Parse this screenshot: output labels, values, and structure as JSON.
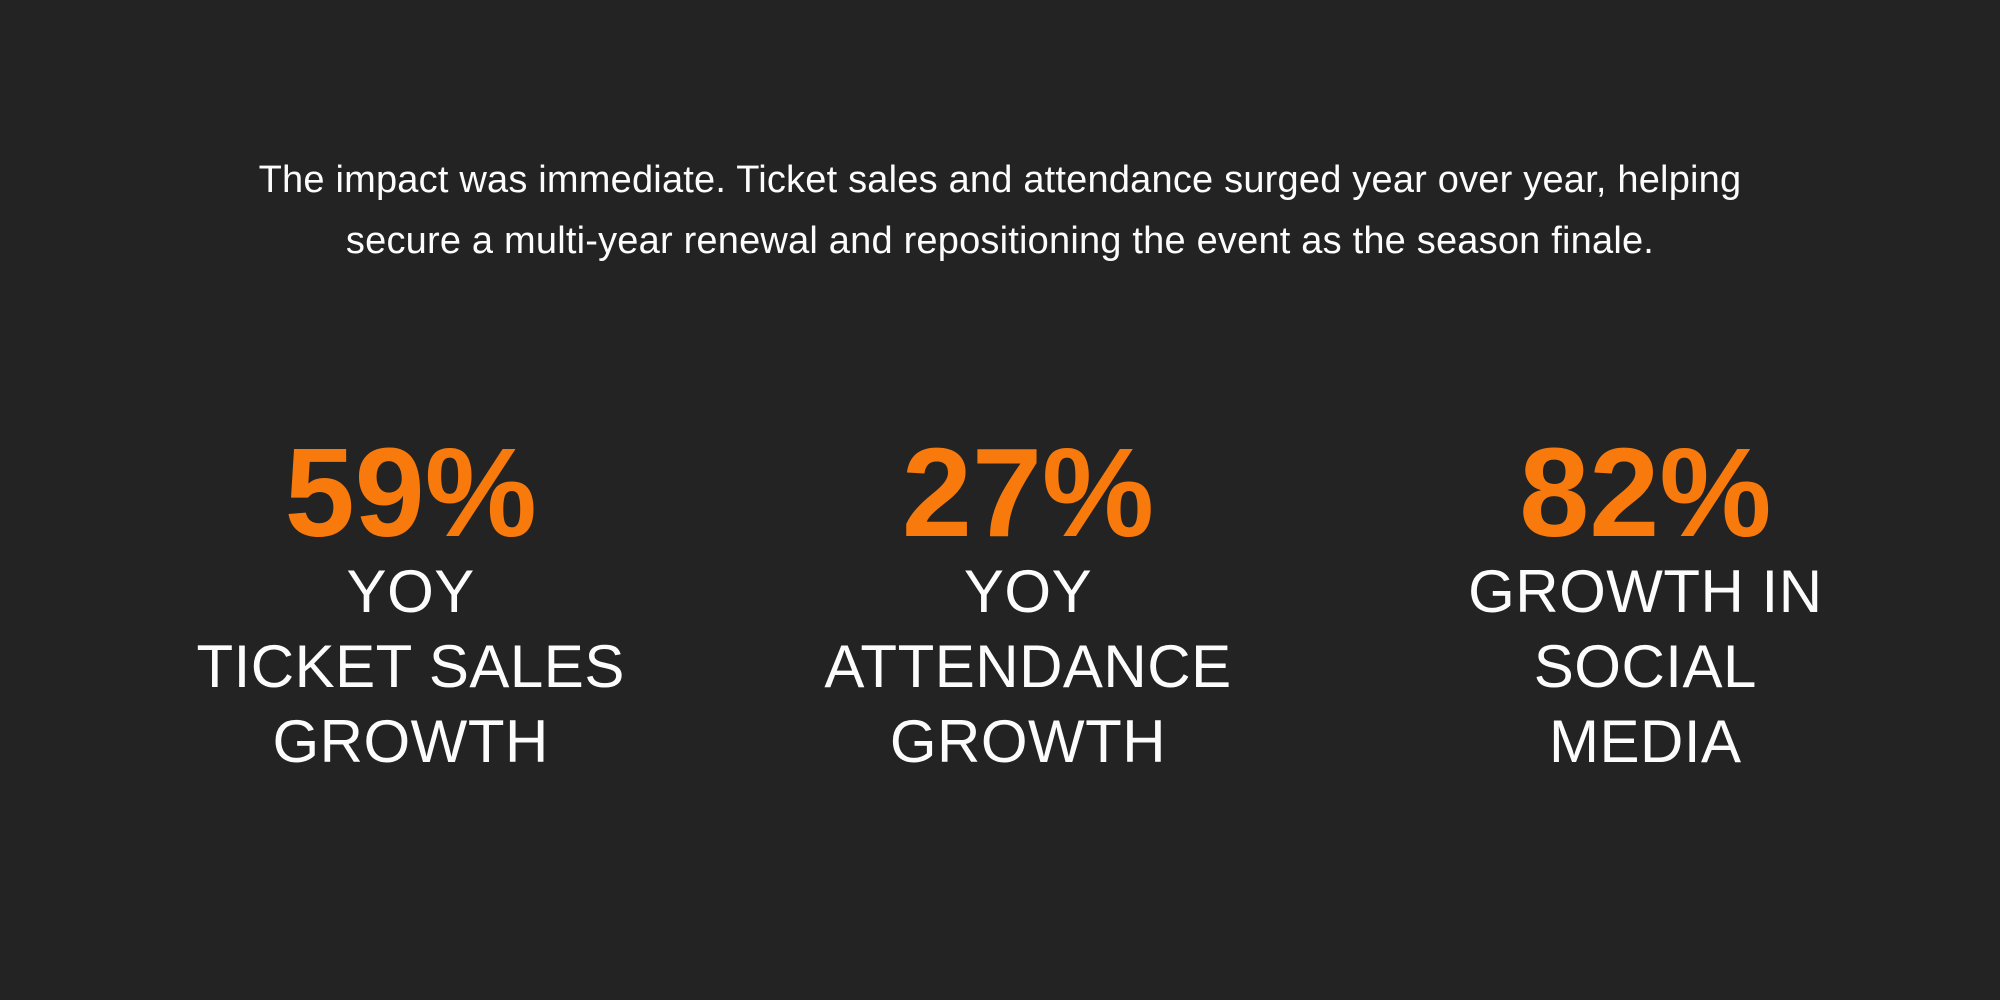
{
  "theme": {
    "background_color": "#232323",
    "accent_color": "#F87A0C",
    "text_color": "#FCFCFC"
  },
  "intro": {
    "text": "The impact was immediate. Ticket sales and attendance surged year over year, helping\nsecure a multi-year renewal and repositioning the event as the season finale."
  },
  "stats": [
    {
      "value": "59%",
      "label": "YOY\nTICKET SALES\nGROWTH"
    },
    {
      "value": "27%",
      "label": "YOY\nATTENDANCE\nGROWTH"
    },
    {
      "value": "82%",
      "label": "GROWTH IN\nSOCIAL\nMEDIA"
    }
  ]
}
